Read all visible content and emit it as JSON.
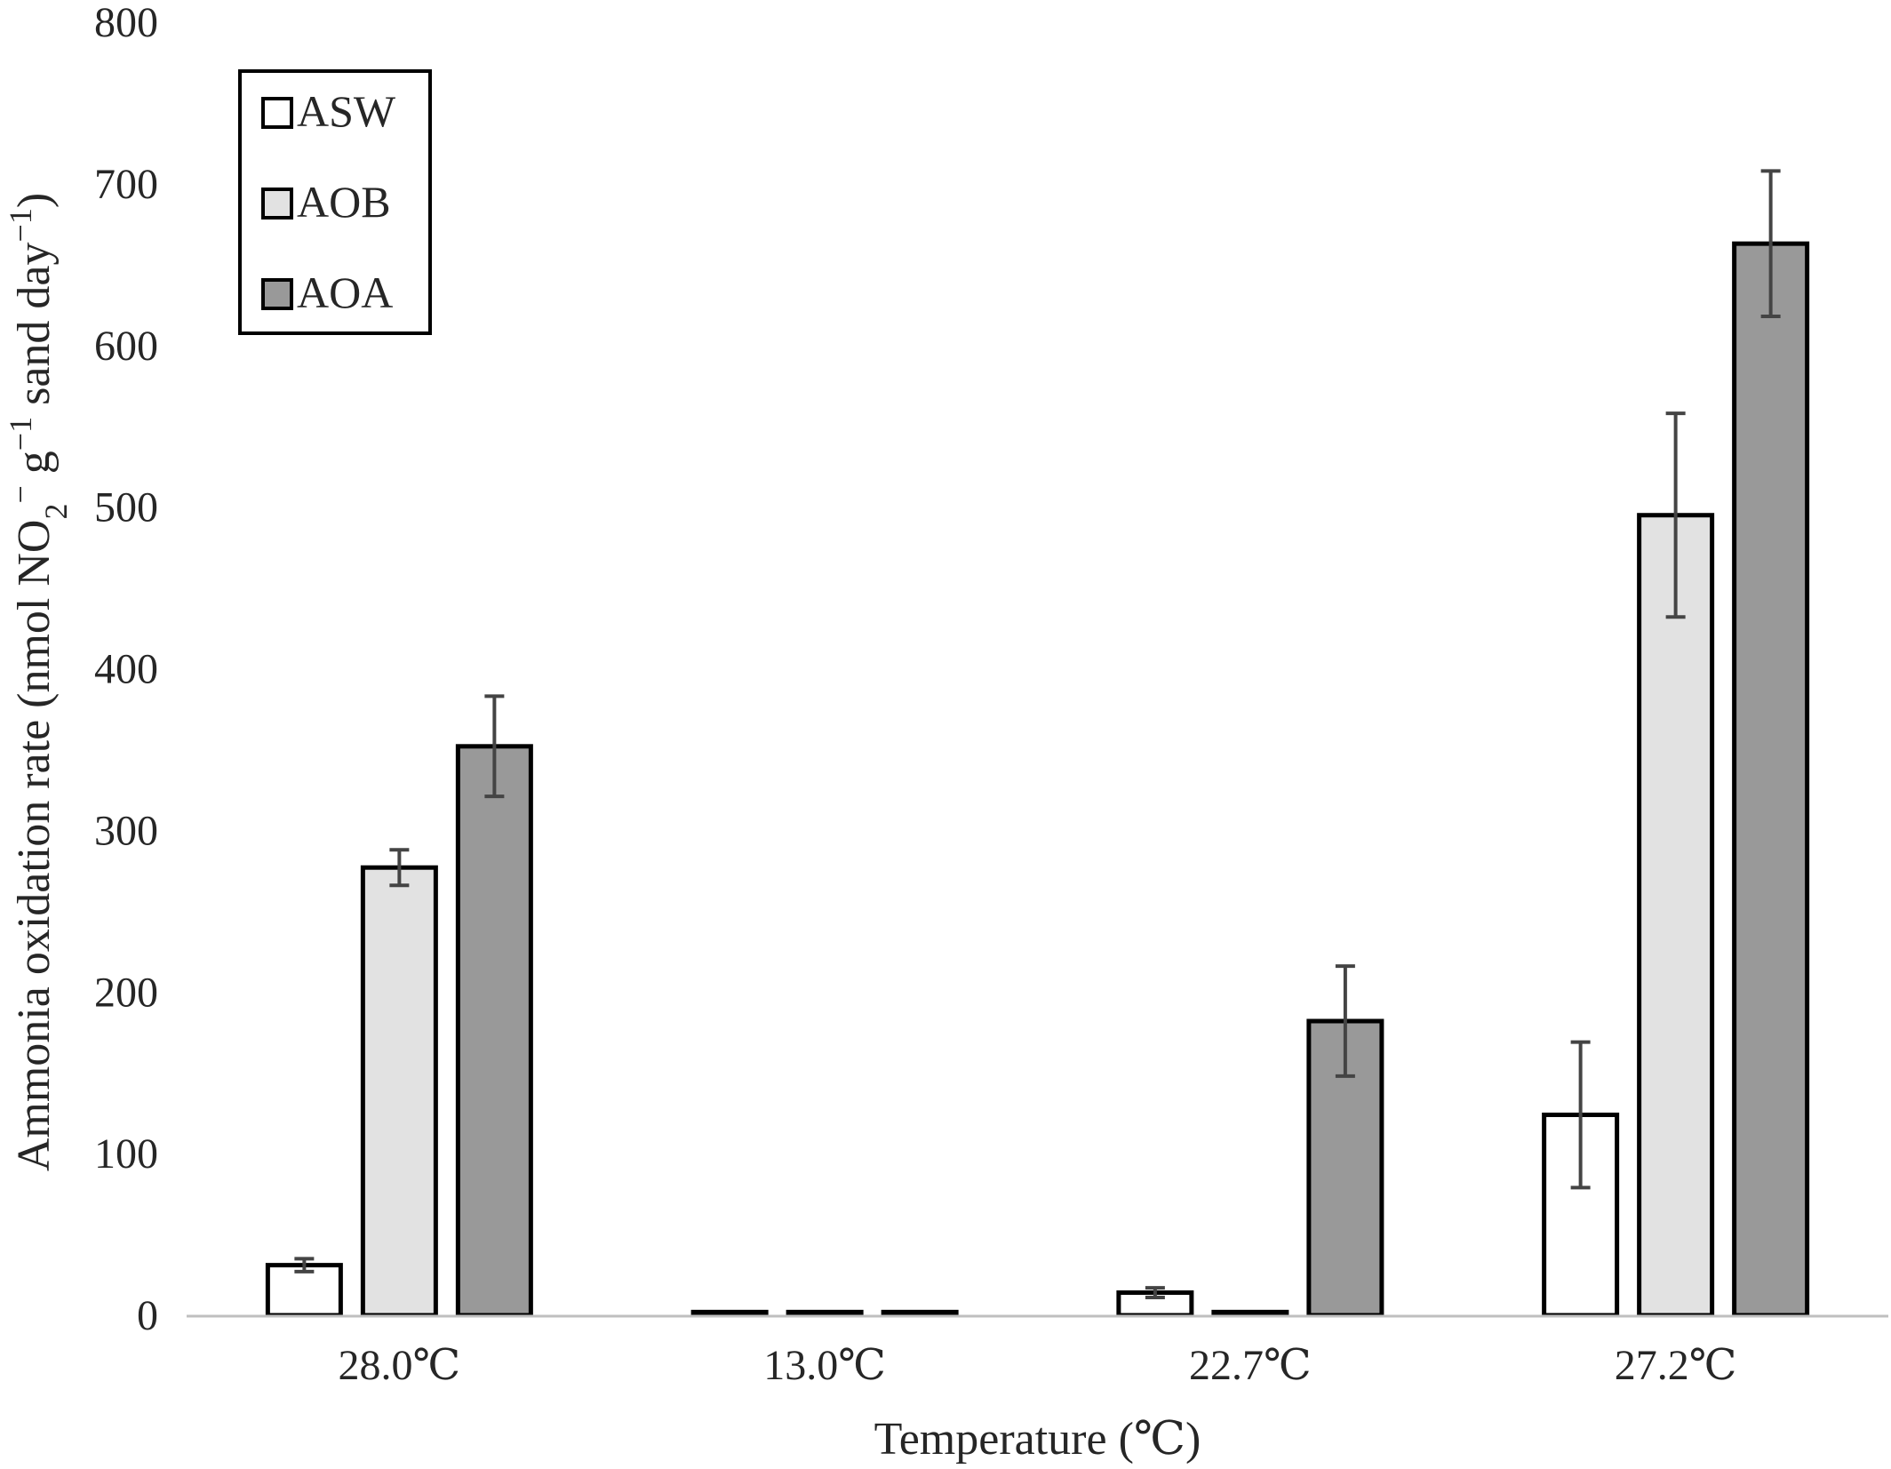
{
  "chart_data": {
    "type": "bar",
    "title": "",
    "xlabel": "Temperature (℃)",
    "ylabel": {
      "prefix": "Ammonia oxidation rate (nmol NO",
      "sub": "2",
      "sup_minus": "−",
      "g": " g",
      "sup_neg1": "−1",
      "sand_day": " sand day",
      "suffix": ")"
    },
    "categories": [
      "28.0℃",
      "13.0℃",
      "22.7℃",
      "27.2℃"
    ],
    "ylim": [
      0,
      800
    ],
    "yticks": [
      0,
      100,
      200,
      300,
      400,
      500,
      600,
      700,
      800
    ],
    "grid": false,
    "legend_position": "top-left",
    "series": [
      {
        "name": "ASW",
        "color": "#ffffff",
        "values": [
          31,
          2,
          14,
          124
        ],
        "errors": [
          4,
          0,
          3,
          45
        ]
      },
      {
        "name": "AOB",
        "color": "#e2e2e2",
        "values": [
          277,
          2,
          2,
          495
        ],
        "errors": [
          11,
          0,
          0,
          63
        ]
      },
      {
        "name": "AOA",
        "color": "#999999",
        "values": [
          352,
          2,
          182,
          663
        ],
        "errors": [
          31,
          0,
          34,
          45
        ]
      }
    ],
    "bar_stroke": "#000000",
    "errorbar_color": "#444444",
    "axis_color": "#bfbfbf"
  }
}
